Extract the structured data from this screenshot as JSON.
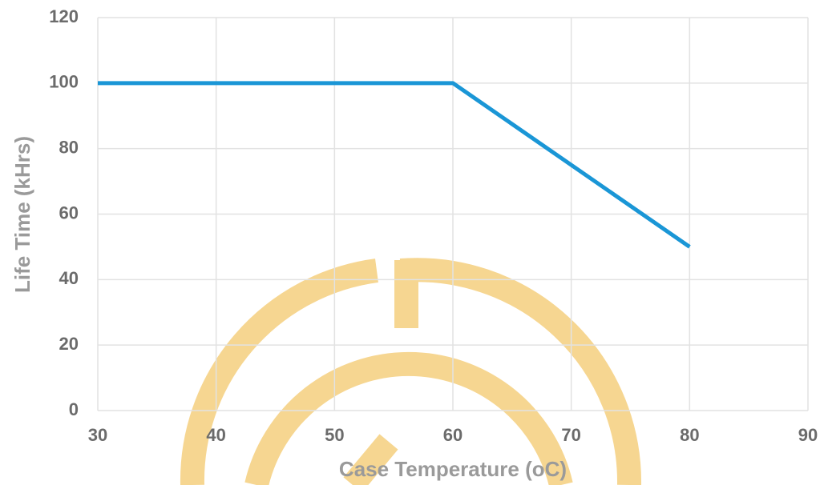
{
  "chart_data": {
    "type": "line",
    "x_label": "Case Temperature (oC)",
    "y_label": "Life Time (kHrs)",
    "x": [
      30,
      60,
      80
    ],
    "values": [
      100,
      100,
      50
    ],
    "color": "#1a96d6",
    "xlim": [
      30,
      90
    ],
    "xticks": [
      30,
      40,
      50,
      60,
      70,
      80,
      90
    ],
    "ylim": [
      0,
      120
    ],
    "yticks": [
      0,
      20,
      40,
      60,
      80,
      100,
      120
    ],
    "grid": true
  }
}
